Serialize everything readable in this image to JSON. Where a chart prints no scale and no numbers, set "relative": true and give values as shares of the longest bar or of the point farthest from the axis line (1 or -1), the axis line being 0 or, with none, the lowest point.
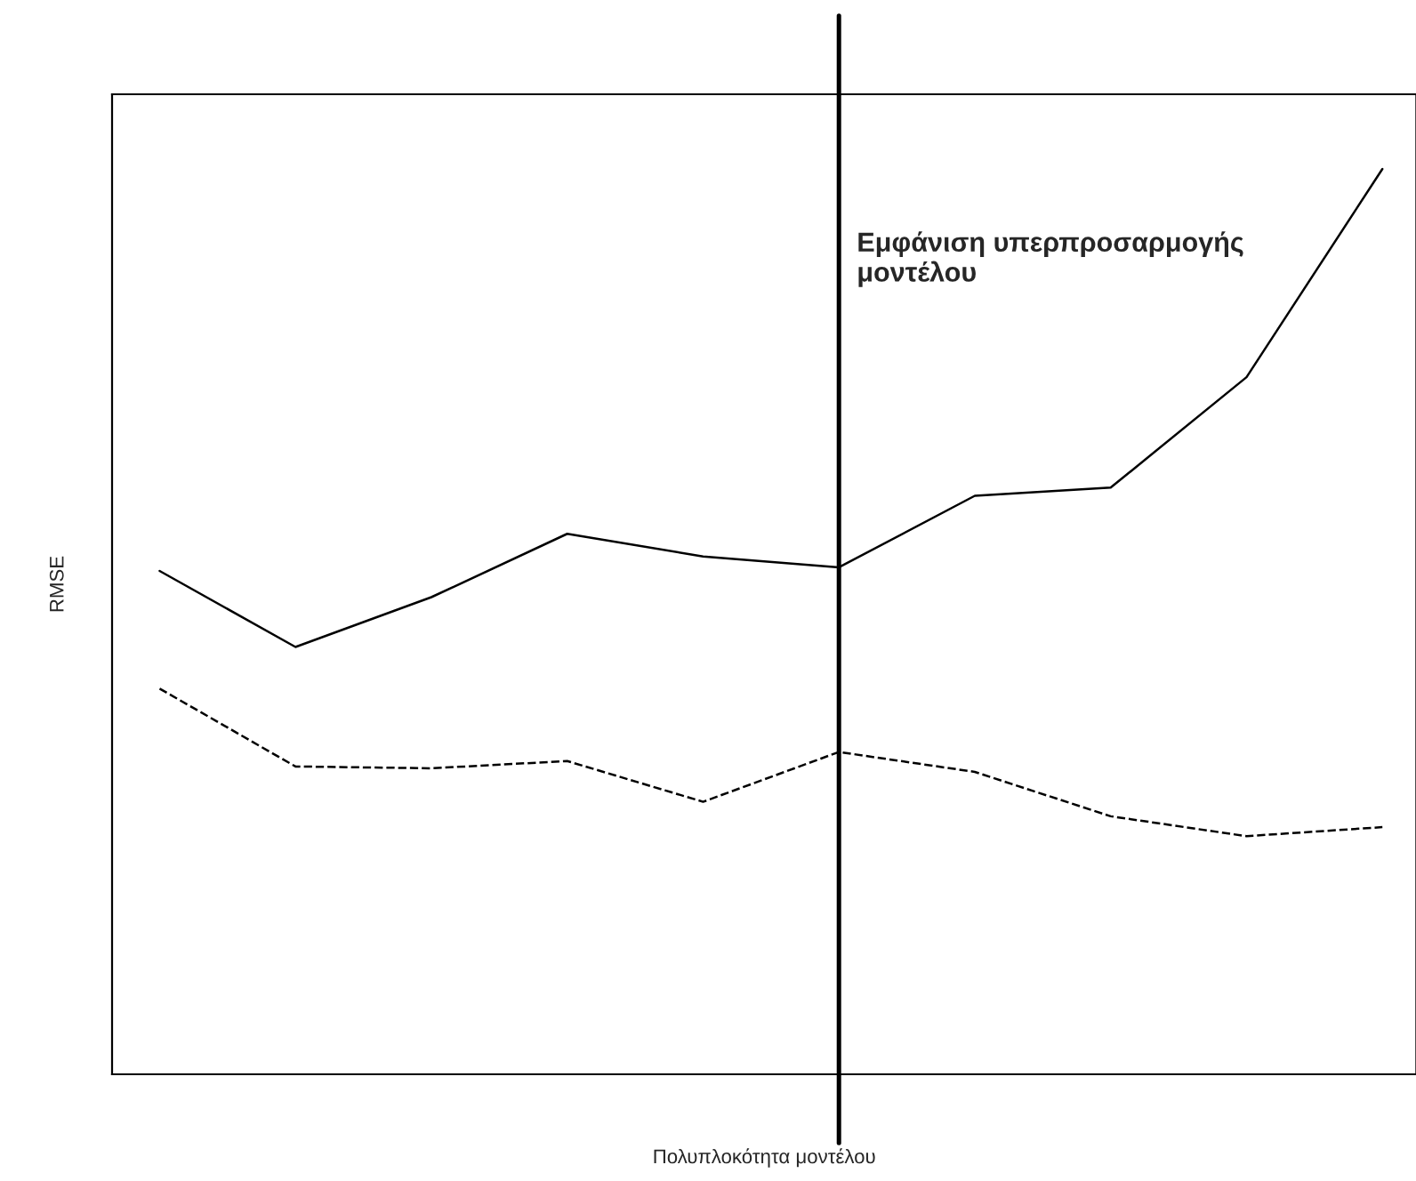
{
  "chart_data": {
    "type": "line",
    "relative": true,
    "xlabel": "Πολυπλοκότητα μοντέλου",
    "ylabel": "RMSE",
    "categories": [
      null,
      null,
      null,
      null,
      null,
      null,
      null,
      null,
      null,
      null
    ],
    "series": [
      {
        "color": "#000000",
        "line_style": "solid",
        "values": [
          0.556,
          0.472,
          0.527,
          0.597,
          0.572,
          0.56,
          0.639,
          0.648,
          0.77,
          1.0
        ]
      },
      {
        "color": "#000000",
        "line_style": "dashed",
        "values": [
          0.426,
          0.34,
          0.338,
          0.346,
          0.301,
          0.356,
          0.334,
          0.285,
          0.263,
          0.273
        ]
      }
    ],
    "annotations": [
      "Εμφάνιση υπερπροσαρμογής μοντέλου"
    ],
    "legend": false,
    "marker": "none"
  }
}
